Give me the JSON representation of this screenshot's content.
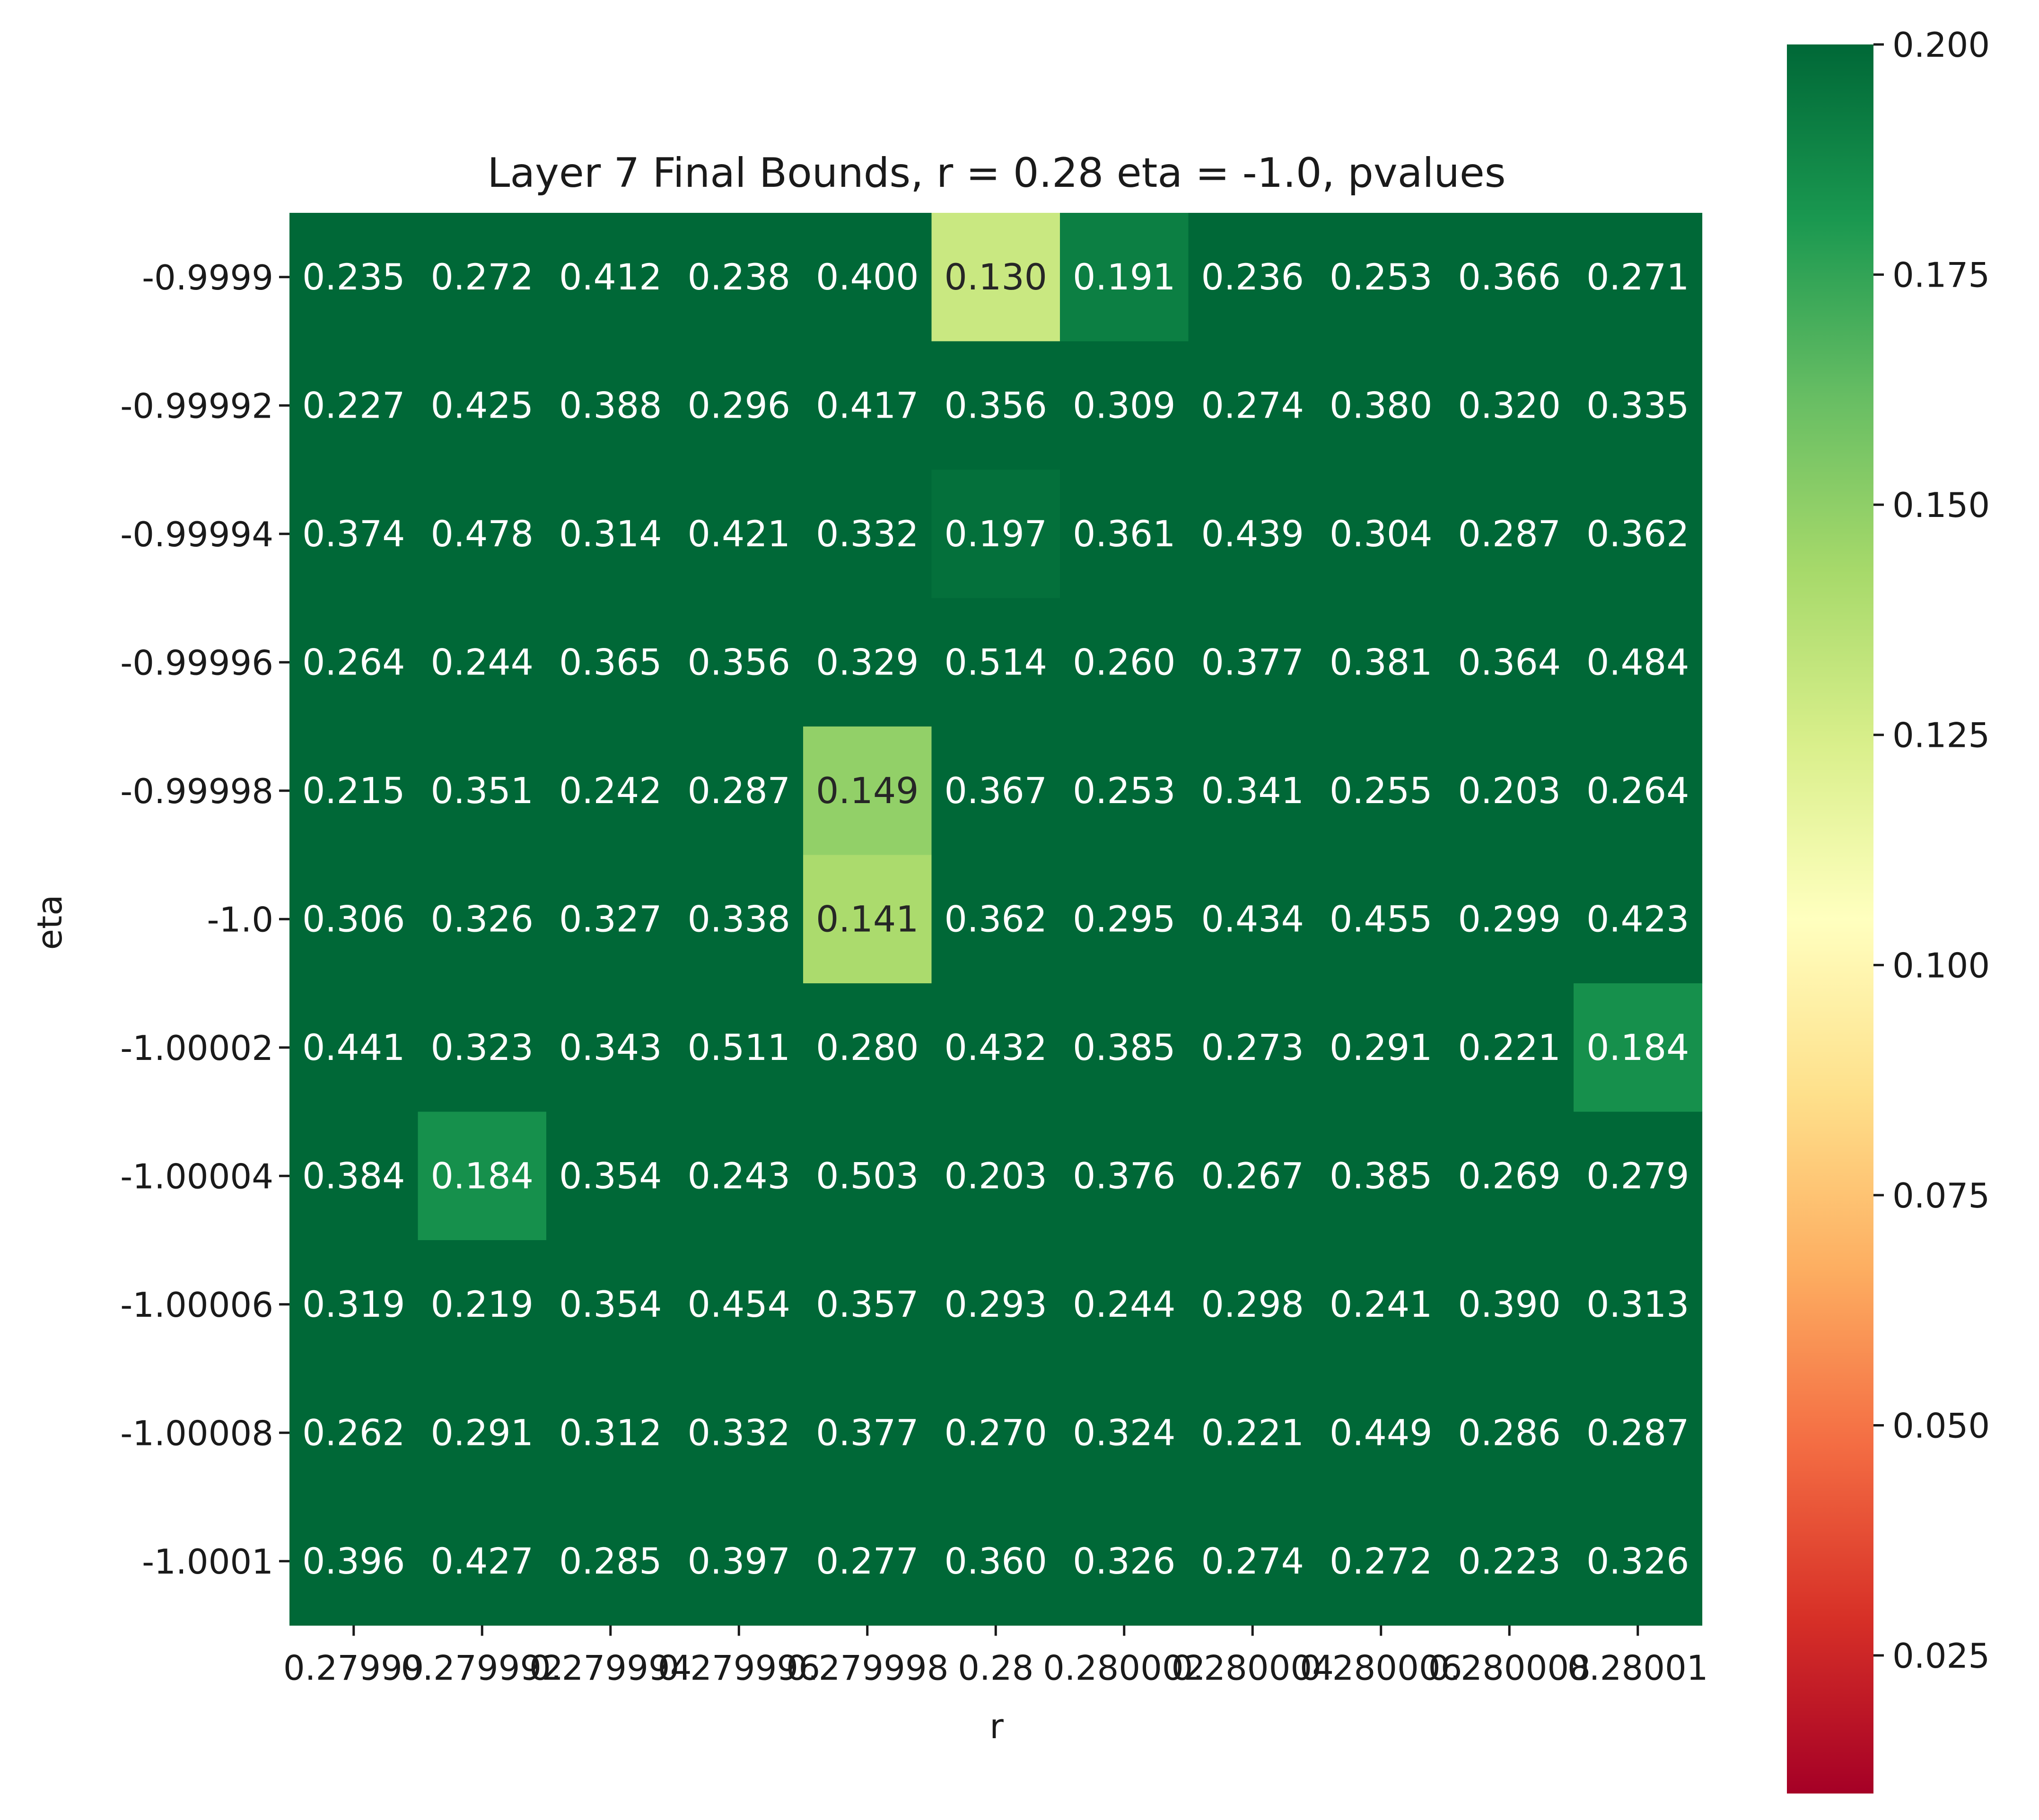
{
  "chart_data": {
    "type": "heatmap",
    "title": "Layer 7 Final Bounds, r = 0.28 eta = -1.0, pvalues",
    "xlabel": "r",
    "ylabel": "eta",
    "x_tick_labels": [
      "0.27999",
      "0.279992",
      "0.279994",
      "0.279996",
      "0.279998",
      "0.28",
      "0.280002",
      "0.280004",
      "0.280006",
      "0.280008",
      "0.28001"
    ],
    "y_tick_labels": [
      "-0.9999",
      "-0.99992",
      "-0.99994",
      "-0.99996",
      "-0.99998",
      "-1.0",
      "-1.00002",
      "-1.00004",
      "-1.00006",
      "-1.00008",
      "-1.0001"
    ],
    "values": [
      [
        0.235,
        0.272,
        0.412,
        0.238,
        0.4,
        0.13,
        0.191,
        0.236,
        0.253,
        0.366,
        0.271
      ],
      [
        0.227,
        0.425,
        0.388,
        0.296,
        0.417,
        0.356,
        0.309,
        0.274,
        0.38,
        0.32,
        0.335
      ],
      [
        0.374,
        0.478,
        0.314,
        0.421,
        0.332,
        0.197,
        0.361,
        0.439,
        0.304,
        0.287,
        0.362
      ],
      [
        0.264,
        0.244,
        0.365,
        0.356,
        0.329,
        0.514,
        0.26,
        0.377,
        0.381,
        0.364,
        0.484
      ],
      [
        0.215,
        0.351,
        0.242,
        0.287,
        0.149,
        0.367,
        0.253,
        0.341,
        0.255,
        0.203,
        0.264
      ],
      [
        0.306,
        0.326,
        0.327,
        0.338,
        0.141,
        0.362,
        0.295,
        0.434,
        0.455,
        0.299,
        0.423
      ],
      [
        0.441,
        0.323,
        0.343,
        0.511,
        0.28,
        0.432,
        0.385,
        0.273,
        0.291,
        0.221,
        0.184
      ],
      [
        0.384,
        0.184,
        0.354,
        0.243,
        0.503,
        0.203,
        0.376,
        0.267,
        0.385,
        0.269,
        0.279
      ],
      [
        0.319,
        0.219,
        0.354,
        0.454,
        0.357,
        0.293,
        0.244,
        0.298,
        0.241,
        0.39,
        0.313
      ],
      [
        0.262,
        0.291,
        0.312,
        0.332,
        0.377,
        0.27,
        0.324,
        0.221,
        0.449,
        0.286,
        0.287
      ],
      [
        0.396,
        0.427,
        0.285,
        0.397,
        0.277,
        0.36,
        0.326,
        0.274,
        0.272,
        0.223,
        0.326
      ]
    ],
    "value_format": "3 decimals",
    "colormap": "RdYlGn",
    "colorbar": {
      "vmin": 0.01,
      "vmax": 0.2,
      "ticks": [
        0.025,
        0.05,
        0.075,
        0.1,
        0.125,
        0.15,
        0.175,
        0.2
      ],
      "tick_labels": [
        "0.025",
        "0.050",
        "0.075",
        "0.100",
        "0.125",
        "0.150",
        "0.175",
        "0.200"
      ]
    },
    "colormap_stops": [
      "#a50026",
      "#d73027",
      "#f46d43",
      "#fdae61",
      "#fee08b",
      "#ffffbf",
      "#d9ef8b",
      "#a6d96a",
      "#66bd63",
      "#1a9850",
      "#006837"
    ],
    "dark_text_color": "#262626",
    "light_text_color": "#ffffff",
    "legend_position": "right"
  }
}
